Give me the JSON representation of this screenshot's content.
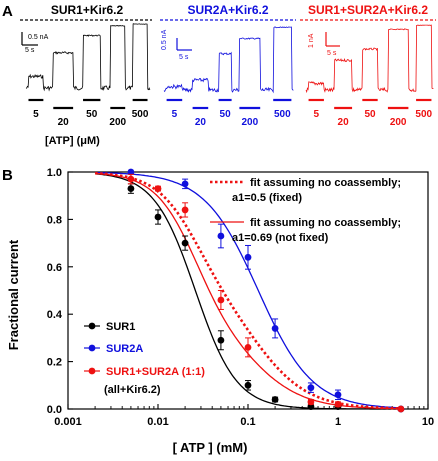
{
  "panel_a": {
    "label": "A",
    "traces": [
      {
        "title": "SUR1+Kir6.2",
        "color": "#000000",
        "scale_current": "0.5 nA",
        "scale_time": "5 s",
        "atp_concentrations": [
          "5",
          "20",
          "50",
          "200",
          "500"
        ]
      },
      {
        "title": "SUR2A+Kir6.2",
        "color": "#1010dd",
        "scale_current": "0.5 nA",
        "scale_time": "5 s",
        "atp_concentrations": [
          "5",
          "20",
          "50",
          "200",
          "500"
        ]
      },
      {
        "title": "SUR1+SUR2A+Kir6.2",
        "color": "#ee1111",
        "scale_current": "1 nA",
        "scale_time": "5 s",
        "atp_concentrations": [
          "5",
          "20",
          "50",
          "200",
          "500"
        ]
      }
    ],
    "atp_axis_label": "[ATP] (μM)"
  },
  "chart_data": {
    "panel_label": "B",
    "type": "scatter",
    "xlabel": "[ ATP ]  (mM)",
    "ylabel": "Fractional current",
    "xscale": "log",
    "xlim": [
      0.001,
      10
    ],
    "ylim": [
      0,
      1.0
    ],
    "x_ticks": [
      "0.001",
      "0.01",
      "0.1",
      "1",
      "10"
    ],
    "y_ticks": [
      "0.0",
      "0.2",
      "0.4",
      "0.6",
      "0.8",
      "1.0"
    ],
    "series": [
      {
        "name": "SUR1",
        "color": "#000000",
        "x": [
          0.005,
          0.01,
          0.02,
          0.05,
          0.1,
          0.2,
          0.5,
          1,
          5
        ],
        "y": [
          0.93,
          0.81,
          0.7,
          0.29,
          0.1,
          0.04,
          0.01,
          0.01,
          0.0
        ],
        "err": [
          0.02,
          0.03,
          0.03,
          0.04,
          0.02,
          0.01,
          0.01,
          0.01,
          0.0
        ],
        "fit_ic50": 0.026,
        "fit_hill": 1.9
      },
      {
        "name": "SUR2A",
        "color": "#1010dd",
        "x": [
          0.005,
          0.02,
          0.05,
          0.1,
          0.2,
          0.5,
          1,
          5
        ],
        "y": [
          1.0,
          0.95,
          0.73,
          0.64,
          0.34,
          0.09,
          0.06,
          0.0
        ],
        "err": [
          0.0,
          0.02,
          0.05,
          0.05,
          0.04,
          0.02,
          0.02,
          0.0
        ],
        "fit_ic50": 0.13,
        "fit_hill": 1.45
      },
      {
        "name": "SUR1+SUR2A (1:1)",
        "color": "#ee1111",
        "x": [
          0.005,
          0.01,
          0.02,
          0.05,
          0.1,
          0.5,
          1,
          5
        ],
        "y": [
          0.97,
          0.93,
          0.84,
          0.46,
          0.26,
          0.03,
          0.02,
          0.0
        ],
        "err": [
          0.02,
          0.01,
          0.03,
          0.04,
          0.04,
          0.01,
          0.01,
          0.0
        ]
      }
    ],
    "fits": [
      {
        "label": "fit assuming no coassembly;\na1=0.5 (fixed)",
        "color": "#ee1111",
        "style": "dotted",
        "a1": 0.5
      },
      {
        "label": "fit assuming no coassembly;\na1=0.69 (not fixed)",
        "color": "#ee1111",
        "style": "solid",
        "a1": 0.69
      }
    ],
    "legend_note": "(all+Kir6.2)",
    "legend_placement": "bottom-left"
  }
}
